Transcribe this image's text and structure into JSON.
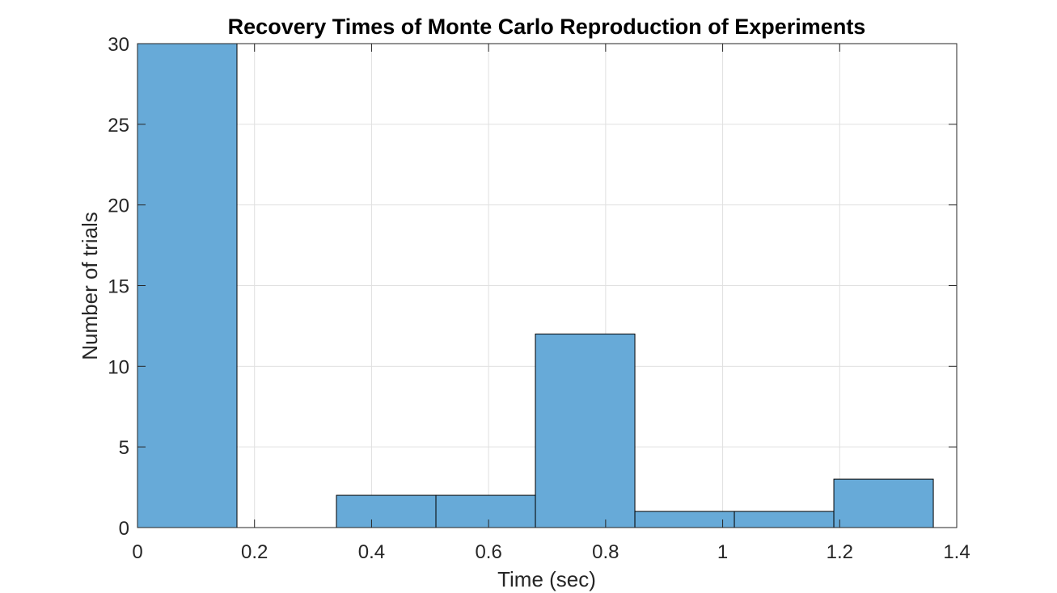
{
  "chart_data": {
    "type": "bar",
    "title": "Recovery Times of Monte Carlo Reproduction of Experiments",
    "xlabel": "Time (sec)",
    "ylabel": "Number of trials",
    "xlim": [
      0,
      1.4
    ],
    "ylim": [
      0,
      30
    ],
    "xticks": [
      0,
      0.2,
      0.4,
      0.6,
      0.8,
      1,
      1.2,
      1.4
    ],
    "xtick_labels": [
      "0",
      "0.2",
      "0.4",
      "0.6",
      "0.8",
      "1",
      "1.2",
      "1.4"
    ],
    "yticks": [
      0,
      5,
      10,
      15,
      20,
      25,
      30
    ],
    "ytick_labels": [
      "0",
      "5",
      "10",
      "15",
      "20",
      "25",
      "30"
    ],
    "grid": true,
    "bin_edges": [
      0,
      0.17,
      0.34,
      0.51,
      0.68,
      0.85,
      1.02,
      1.19,
      1.36
    ],
    "values": [
      30,
      0,
      2,
      2,
      12,
      1,
      1,
      3
    ],
    "color": "#67aad8",
    "edge_color": "#000000"
  }
}
